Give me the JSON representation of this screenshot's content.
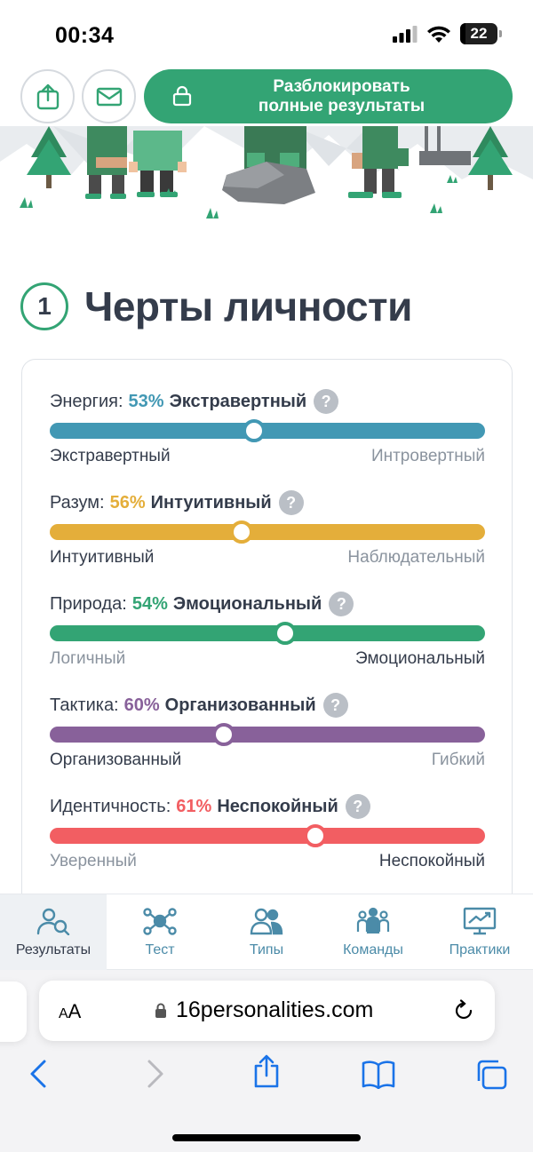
{
  "status_bar": {
    "time": "00:34",
    "battery": "22"
  },
  "top_actions": {
    "unlock_line1": "Разблокировать",
    "unlock_line2": "полные результаты"
  },
  "section": {
    "number": "1",
    "title": "Черты личности"
  },
  "traits": [
    {
      "label": "Энергия:",
      "percent": "53%",
      "type": "Экстравертный",
      "left": "Экстравертный",
      "right": "Интровертный",
      "active_side": "left",
      "color": "#4298b4",
      "position": 0.47
    },
    {
      "label": "Разум:",
      "percent": "56%",
      "type": "Интуитивный",
      "left": "Интуитивный",
      "right": "Наблюдательный",
      "active_side": "left",
      "color": "#e4ae3a",
      "position": 0.44
    },
    {
      "label": "Природа:",
      "percent": "54%",
      "type": "Эмоциональный",
      "left": "Логичный",
      "right": "Эмоциональный",
      "active_side": "right",
      "color": "#33a474",
      "position": 0.54
    },
    {
      "label": "Тактика:",
      "percent": "60%",
      "type": "Организованный",
      "left": "Организованный",
      "right": "Гибкий",
      "active_side": "left",
      "color": "#88619a",
      "position": 0.4
    },
    {
      "label": "Идентичность:",
      "percent": "61%",
      "type": "Неспокойный",
      "left": "Уверенный",
      "right": "Неспокойный",
      "active_side": "right",
      "color": "#f25e62",
      "position": 0.61
    }
  ],
  "tabs": [
    {
      "label": "Результаты",
      "icon": "results-icon",
      "active": true
    },
    {
      "label": "Тест",
      "icon": "test-icon",
      "active": false
    },
    {
      "label": "Типы",
      "icon": "types-icon",
      "active": false
    },
    {
      "label": "Команды",
      "icon": "teams-icon",
      "active": false
    },
    {
      "label": "Практики",
      "icon": "practices-icon",
      "active": false
    }
  ],
  "browser": {
    "aa_small": "A",
    "aa_large": "A",
    "url": "16personalities.com"
  },
  "colors": {
    "brand": "#33a474",
    "text": "#343c4b",
    "muted": "#8a939e",
    "tab_text": "#4b8ba8"
  }
}
